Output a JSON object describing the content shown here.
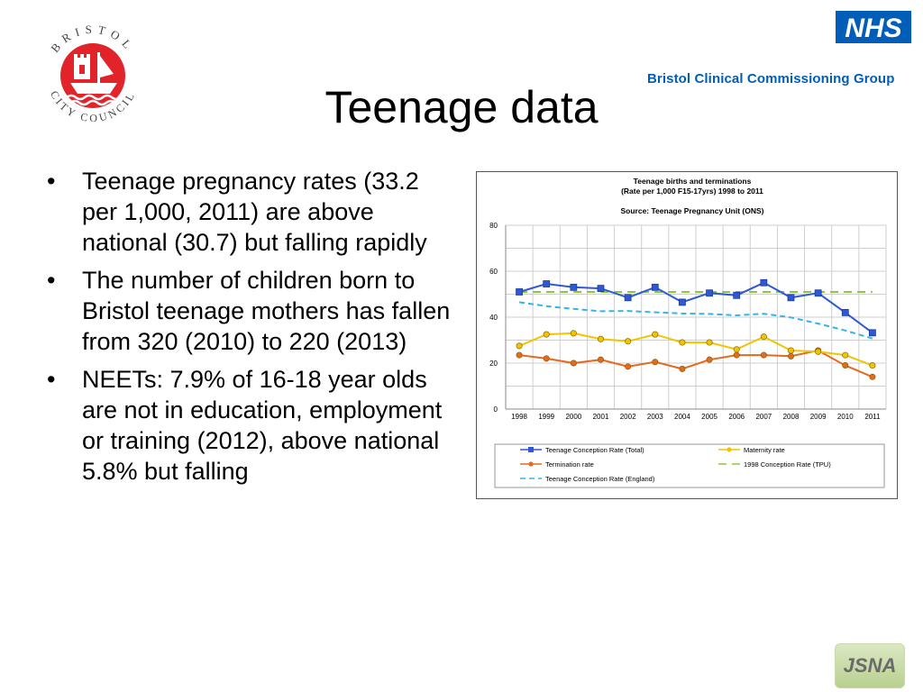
{
  "slide": {
    "title": "Teenage data",
    "bullets": [
      "Teenage pregnancy rates (33.2 per 1,000, 2011) are above national (30.7) but falling rapidly",
      "The number of children born to Bristol teenage mothers has fallen from 320 (2010) to 220 (2013)",
      "NEETs: 7.9% of 16-18 year olds are not in education, employment or training (2012), above national 5.8% but falling"
    ],
    "bullet_glyph": "•"
  },
  "logos": {
    "council_ring_text": "BRISTOL CITY COUNCIL",
    "nhs": "NHS",
    "ccg": "Bristol Clinical Commissioning Group",
    "jsna": "JSNA"
  },
  "colors": {
    "council_red": "#e2232a",
    "nhs_blue": "#005eb8",
    "conception": "#2e59d6",
    "maternity": "#f2c400",
    "termination": "#e36a1e",
    "conception_1998": "#8dc63f",
    "england": "#33b5e5"
  },
  "chart_data": {
    "type": "line",
    "title": "Teenage births and terminations",
    "subtitle": "(Rate per 1,000 F15-17yrs) 1998 to 2011",
    "source": "Source: Teenage Pregnancy Unit (ONS)",
    "x": [
      "1998",
      "1999",
      "2000",
      "2001",
      "2002",
      "2003",
      "2004",
      "2005",
      "2006",
      "2007",
      "2008",
      "2009",
      "2010",
      "2011"
    ],
    "ylim": [
      0,
      80
    ],
    "yticks": [
      "0",
      "20",
      "40",
      "60",
      "80"
    ],
    "grid": true,
    "legend_position": "bottom",
    "series": [
      {
        "name": "Teenage Conception Rate (Total)",
        "color": "#2e59d6",
        "marker": "square",
        "dash": "solid",
        "values": [
          51,
          54.5,
          53,
          52.5,
          48.5,
          53,
          46.5,
          50.5,
          49.5,
          55,
          48.5,
          50.5,
          42,
          33.2
        ]
      },
      {
        "name": "Maternity rate",
        "color": "#f2c400",
        "marker": "circle",
        "dash": "solid",
        "values": [
          27.5,
          32.5,
          33,
          30.5,
          29.5,
          32.5,
          29,
          29,
          26,
          31.5,
          25.5,
          25,
          23.5,
          19
        ]
      },
      {
        "name": "Termination rate",
        "color": "#e36a1e",
        "marker": "circle",
        "dash": "solid",
        "values": [
          23.5,
          22,
          20,
          21.5,
          18.5,
          20.5,
          17.5,
          21.5,
          23.5,
          23.5,
          23,
          25.5,
          19,
          14
        ]
      },
      {
        "name": "1998 Conception Rate (TPU)",
        "color": "#8dc63f",
        "marker": "none",
        "dash": "long",
        "values": [
          51,
          51,
          51,
          51,
          51,
          51,
          51,
          51,
          51,
          51,
          51,
          51,
          51,
          51
        ]
      },
      {
        "name": "Teenage Conception Rate (England)",
        "color": "#33b5e5",
        "marker": "none",
        "dash": "dashed",
        "values": [
          46.5,
          44.8,
          43.6,
          42.6,
          42.7,
          42.1,
          41.6,
          41.4,
          40.8,
          41.5,
          39.9,
          37.2,
          34.2,
          30.7
        ]
      }
    ]
  }
}
